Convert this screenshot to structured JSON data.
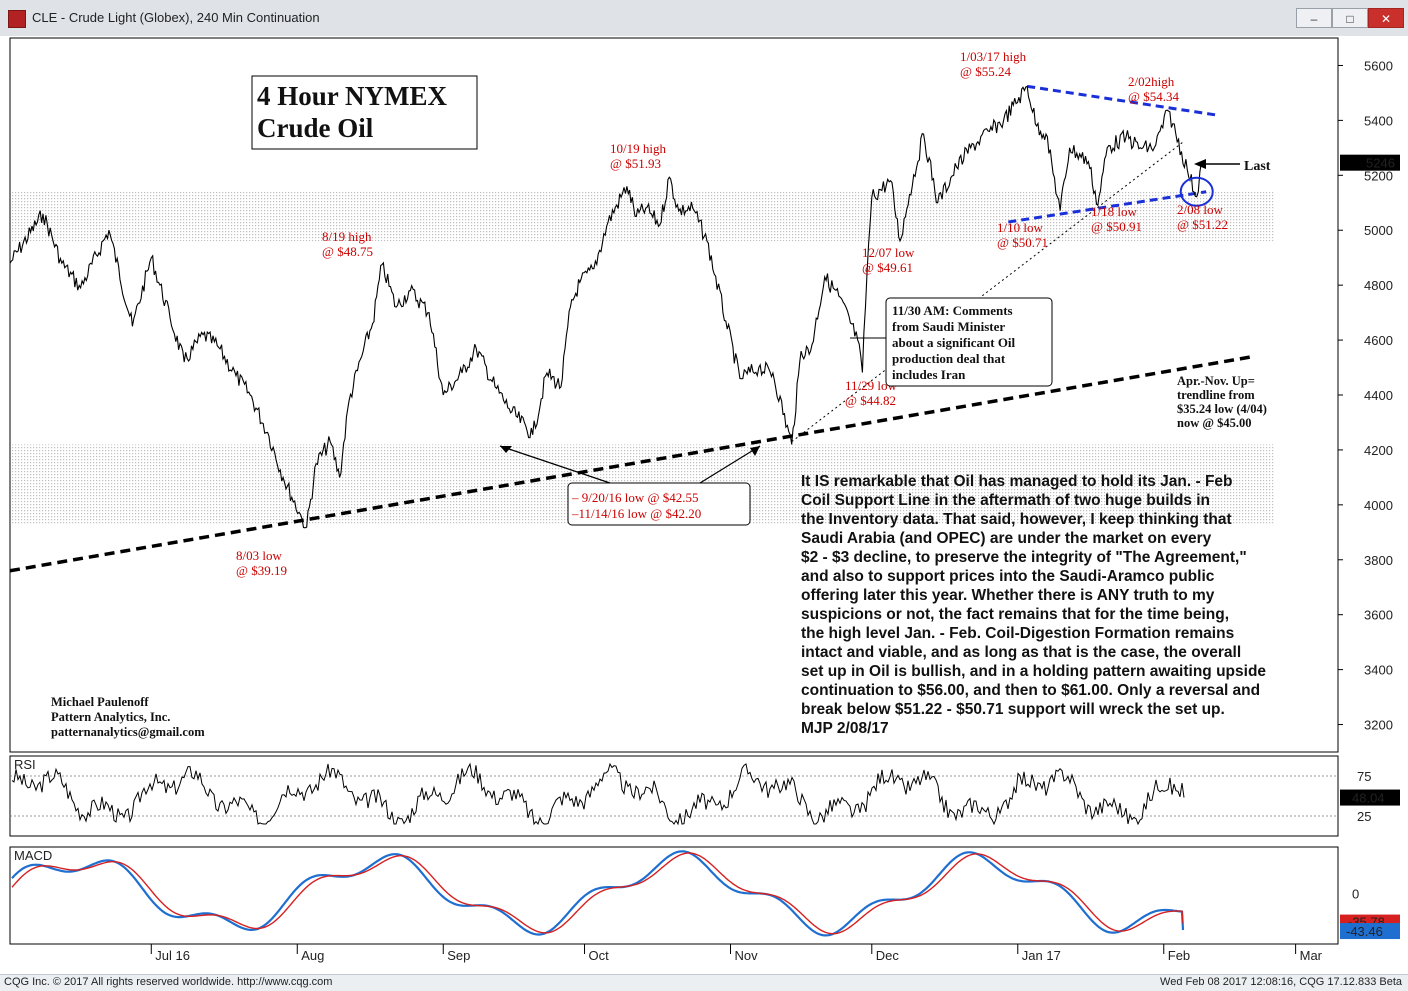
{
  "window": {
    "title": "CLE - Crude Light (Globex), 240 Min Continuation",
    "buttons": [
      "–",
      "□",
      "✕"
    ]
  },
  "status_bar": {
    "left": "CQG Inc. © 2017 All rights reserved worldwide. http://www.cqg.com",
    "right": "Wed Feb 08 2017 12:08:16, CQG 17.12.833 Beta"
  },
  "chart_data": {
    "type": "line",
    "title": "4 Hour NYMEX Crude Oil",
    "title_lines": [
      "4 Hour NYMEX",
      "Crude Oil"
    ],
    "y_axis": {
      "range": [
        3100,
        5700
      ],
      "ticks": [
        5600,
        5400,
        5200,
        5000,
        4800,
        4600,
        4400,
        4200,
        4000,
        3800,
        3600,
        3400,
        3200
      ],
      "tick_labels": [
        "5600",
        "5400",
        "5200",
        "5000",
        "4800",
        "4600",
        "4400",
        "4200",
        "4000",
        "3800",
        "3600",
        "3400",
        "3200"
      ],
      "last_price_label": "5246",
      "last_price_value": 5246
    },
    "x_axis": {
      "range": [
        "2016-06-01",
        "2017-03-10"
      ],
      "ticks": [
        {
          "date": "2016-07-01",
          "label": "Jul 16"
        },
        {
          "date": "2016-08-01",
          "label": "Aug"
        },
        {
          "date": "2016-09-01",
          "label": "Sep"
        },
        {
          "date": "2016-10-01",
          "label": "Oct"
        },
        {
          "date": "2016-11-01",
          "label": "Nov"
        },
        {
          "date": "2016-12-01",
          "label": "Dec"
        },
        {
          "date": "2017-01-01",
          "label": "Jan 17"
        },
        {
          "date": "2017-02-01",
          "label": "Feb"
        },
        {
          "date": "2017-03-01",
          "label": "Mar"
        }
      ]
    },
    "series": [
      {
        "name": "",
        "style": "price",
        "color": "#000000",
        "points": [
          [
            "2016-06-01",
            4880
          ],
          [
            "2016-06-08",
            5060
          ],
          [
            "2016-06-12",
            4880
          ],
          [
            "2016-06-16",
            4790
          ],
          [
            "2016-06-22",
            5000
          ],
          [
            "2016-06-27",
            4650
          ],
          [
            "2016-07-01",
            4900
          ],
          [
            "2016-07-05",
            4680
          ],
          [
            "2016-07-08",
            4520
          ],
          [
            "2016-07-12",
            4620
          ],
          [
            "2016-07-15",
            4580
          ],
          [
            "2016-07-19",
            4470
          ],
          [
            "2016-07-22",
            4400
          ],
          [
            "2016-07-26",
            4250
          ],
          [
            "2016-07-29",
            4100
          ],
          [
            "2016-08-02",
            3950
          ],
          [
            "2016-08-03",
            3919
          ],
          [
            "2016-08-05",
            4150
          ],
          [
            "2016-08-08",
            4230
          ],
          [
            "2016-08-10",
            4100
          ],
          [
            "2016-08-12",
            4380
          ],
          [
            "2016-08-15",
            4560
          ],
          [
            "2016-08-17",
            4660
          ],
          [
            "2016-08-19",
            4875
          ],
          [
            "2016-08-22",
            4720
          ],
          [
            "2016-08-25",
            4780
          ],
          [
            "2016-08-29",
            4700
          ],
          [
            "2016-09-01",
            4400
          ],
          [
            "2016-09-05",
            4480
          ],
          [
            "2016-09-08",
            4570
          ],
          [
            "2016-09-12",
            4430
          ],
          [
            "2016-09-15",
            4350
          ],
          [
            "2016-09-20",
            4255
          ],
          [
            "2016-09-23",
            4480
          ],
          [
            "2016-09-26",
            4430
          ],
          [
            "2016-09-28",
            4720
          ],
          [
            "2016-09-30",
            4810
          ],
          [
            "2016-10-03",
            4860
          ],
          [
            "2016-10-06",
            5030
          ],
          [
            "2016-10-10",
            5160
          ],
          [
            "2016-10-12",
            5050
          ],
          [
            "2016-10-14",
            5080
          ],
          [
            "2016-10-17",
            5020
          ],
          [
            "2016-10-19",
            5193
          ],
          [
            "2016-10-21",
            5070
          ],
          [
            "2016-10-24",
            5080
          ],
          [
            "2016-10-27",
            4960
          ],
          [
            "2016-10-31",
            4670
          ],
          [
            "2016-11-03",
            4460
          ],
          [
            "2016-11-07",
            4500
          ],
          [
            "2016-11-10",
            4480
          ],
          [
            "2016-11-14",
            4220
          ],
          [
            "2016-11-16",
            4560
          ],
          [
            "2016-11-18",
            4560
          ],
          [
            "2016-11-21",
            4830
          ],
          [
            "2016-11-24",
            4760
          ],
          [
            "2016-11-28",
            4600
          ],
          [
            "2016-11-29",
            4482
          ],
          [
            "2016-11-30",
            4850
          ],
          [
            "2016-12-01",
            5120
          ],
          [
            "2016-12-05",
            5180
          ],
          [
            "2016-12-07",
            4961
          ],
          [
            "2016-12-09",
            5130
          ],
          [
            "2016-12-12",
            5350
          ],
          [
            "2016-12-15",
            5100
          ],
          [
            "2016-12-19",
            5230
          ],
          [
            "2016-12-22",
            5300
          ],
          [
            "2016-12-26",
            5360
          ],
          [
            "2016-12-29",
            5400
          ],
          [
            "2017-01-03",
            5524
          ],
          [
            "2017-01-05",
            5380
          ],
          [
            "2017-01-07",
            5350
          ],
          [
            "2017-01-10",
            5071
          ],
          [
            "2017-01-12",
            5300
          ],
          [
            "2017-01-16",
            5250
          ],
          [
            "2017-01-18",
            5091
          ],
          [
            "2017-01-20",
            5300
          ],
          [
            "2017-01-24",
            5340
          ],
          [
            "2017-01-27",
            5300
          ],
          [
            "2017-01-30",
            5300
          ],
          [
            "2017-02-02",
            5434
          ],
          [
            "2017-02-06",
            5220
          ],
          [
            "2017-02-08",
            5122
          ],
          [
            "2017-02-09",
            5246
          ]
        ]
      },
      {
        "name": "RSI",
        "style": "oscillator",
        "color": "#000000",
        "range": [
          0,
          100
        ],
        "ticks": [
          75,
          25
        ],
        "tick_labels": [
          "75",
          "25"
        ],
        "last_label": "48.04",
        "last_value": 48.04
      },
      {
        "name": "MACD",
        "style": "oscillator",
        "colors": [
          "#1f6fd1",
          "#d62020"
        ],
        "range": [
          -60,
          55
        ],
        "ticks": [
          0
        ],
        "tick_labels": [
          "0"
        ],
        "last_labels": [
          "-35.78",
          "-43.46"
        ],
        "last_values": [
          -35.78,
          -43.46
        ]
      }
    ],
    "annotations": {
      "price_labels": [
        {
          "lines": [
            "8/03 low",
            "@ $39.19"
          ],
          "date": "2016-08-03",
          "value": 3919
        },
        {
          "lines": [
            "8/19 high",
            "@ $48.75"
          ],
          "date": "2016-08-19",
          "value": 4875
        },
        {
          "lines": [
            "10/19 high",
            "@ $51.93"
          ],
          "date": "2016-10-19",
          "value": 5193
        },
        {
          "lines": [
            "11/29 low",
            "@ $44.82"
          ],
          "date": "2016-11-29",
          "value": 4482
        },
        {
          "lines": [
            "12/07 low",
            "@ $49.61"
          ],
          "date": "2016-12-07",
          "value": 4961
        },
        {
          "lines": [
            "1/03/17 high",
            "@ $55.24"
          ],
          "date": "2017-01-03",
          "value": 5524
        },
        {
          "lines": [
            "2/02high",
            "@ $54.34"
          ],
          "date": "2017-02-02",
          "value": 5434
        },
        {
          "lines": [
            "1/10 low",
            "@ $50.71"
          ],
          "date": "2017-01-10",
          "value": 5071
        },
        {
          "lines": [
            "1/18 low",
            "@ $50.91"
          ],
          "date": "2017-01-18",
          "value": 5091
        },
        {
          "lines": [
            "2/08 low",
            "@ $51.22"
          ],
          "date": "2017-02-08",
          "value": 5122
        }
      ],
      "double_low_box": [
        "– 9/20/16 low @ $42.55",
        "–11/14/16 low @ $42.20"
      ],
      "news_box": [
        "11/30 AM: Comments",
        "from Saudi Minister",
        "about a significant Oil",
        "production deal that",
        "includes Iran"
      ],
      "trendline_note": [
        "Apr.-Nov. Up=",
        "trendline from",
        "$35.24 low (4/04)",
        "now @ $45.00"
      ],
      "last_marker": "Last",
      "author": [
        "Michael Paulenoff",
        "Pattern Analytics, Inc.",
        "patternanalytics@gmail.com"
      ],
      "commentary": [
        "It IS remarkable that Oil has managed to hold its Jan. - Feb",
        "Coil Support Line in the aftermath of two huge builds in",
        "the Inventory data. That said, however, I keep thinking that",
        "Saudi Arabia (and OPEC) are under the market on every",
        "$2 - $3 decline, to preserve the integrity of \"The Agreement,\"",
        "and also to support prices into the Saudi-Aramco public",
        "offering later this year. Whether there is ANY truth to my",
        "suspicions or not, the fact remains that for the time being,",
        "the high level Jan. - Feb. Coil-Digestion Formation remains",
        "intact and viable, and as long as that is the case, the overall",
        "set up in Oil is bullish, and in a holding pattern awaiting upside",
        "continuation to $56.00, and then to $61.00. Only a reversal and",
        "break below $51.22 - $50.71 support will wreck the set up.",
        "MJP 2/08/17"
      ]
    },
    "shaded_zones": [
      {
        "from": 4960,
        "to": 5140
      },
      {
        "from": 3930,
        "to": 4220
      }
    ],
    "trendlines": [
      {
        "name": "up-trendline",
        "style": "dashed-black",
        "from": [
          "2016-06-01",
          3760
        ],
        "to": [
          "2017-02-20",
          4540
        ]
      },
      {
        "name": "coil-resistance",
        "style": "dashed-blue",
        "from": [
          "2017-01-03",
          5524
        ],
        "to": [
          "2017-02-12",
          5420
        ]
      },
      {
        "name": "coil-support",
        "style": "dashed-blue",
        "from": [
          "2016-12-30",
          5030
        ],
        "to": [
          "2017-02-10",
          5140
        ]
      },
      {
        "name": "dotted-support",
        "style": "dotted-black",
        "from": [
          "2016-11-14",
          4230
        ],
        "to": [
          "2017-02-05",
          5320
        ]
      }
    ],
    "grid": false
  }
}
